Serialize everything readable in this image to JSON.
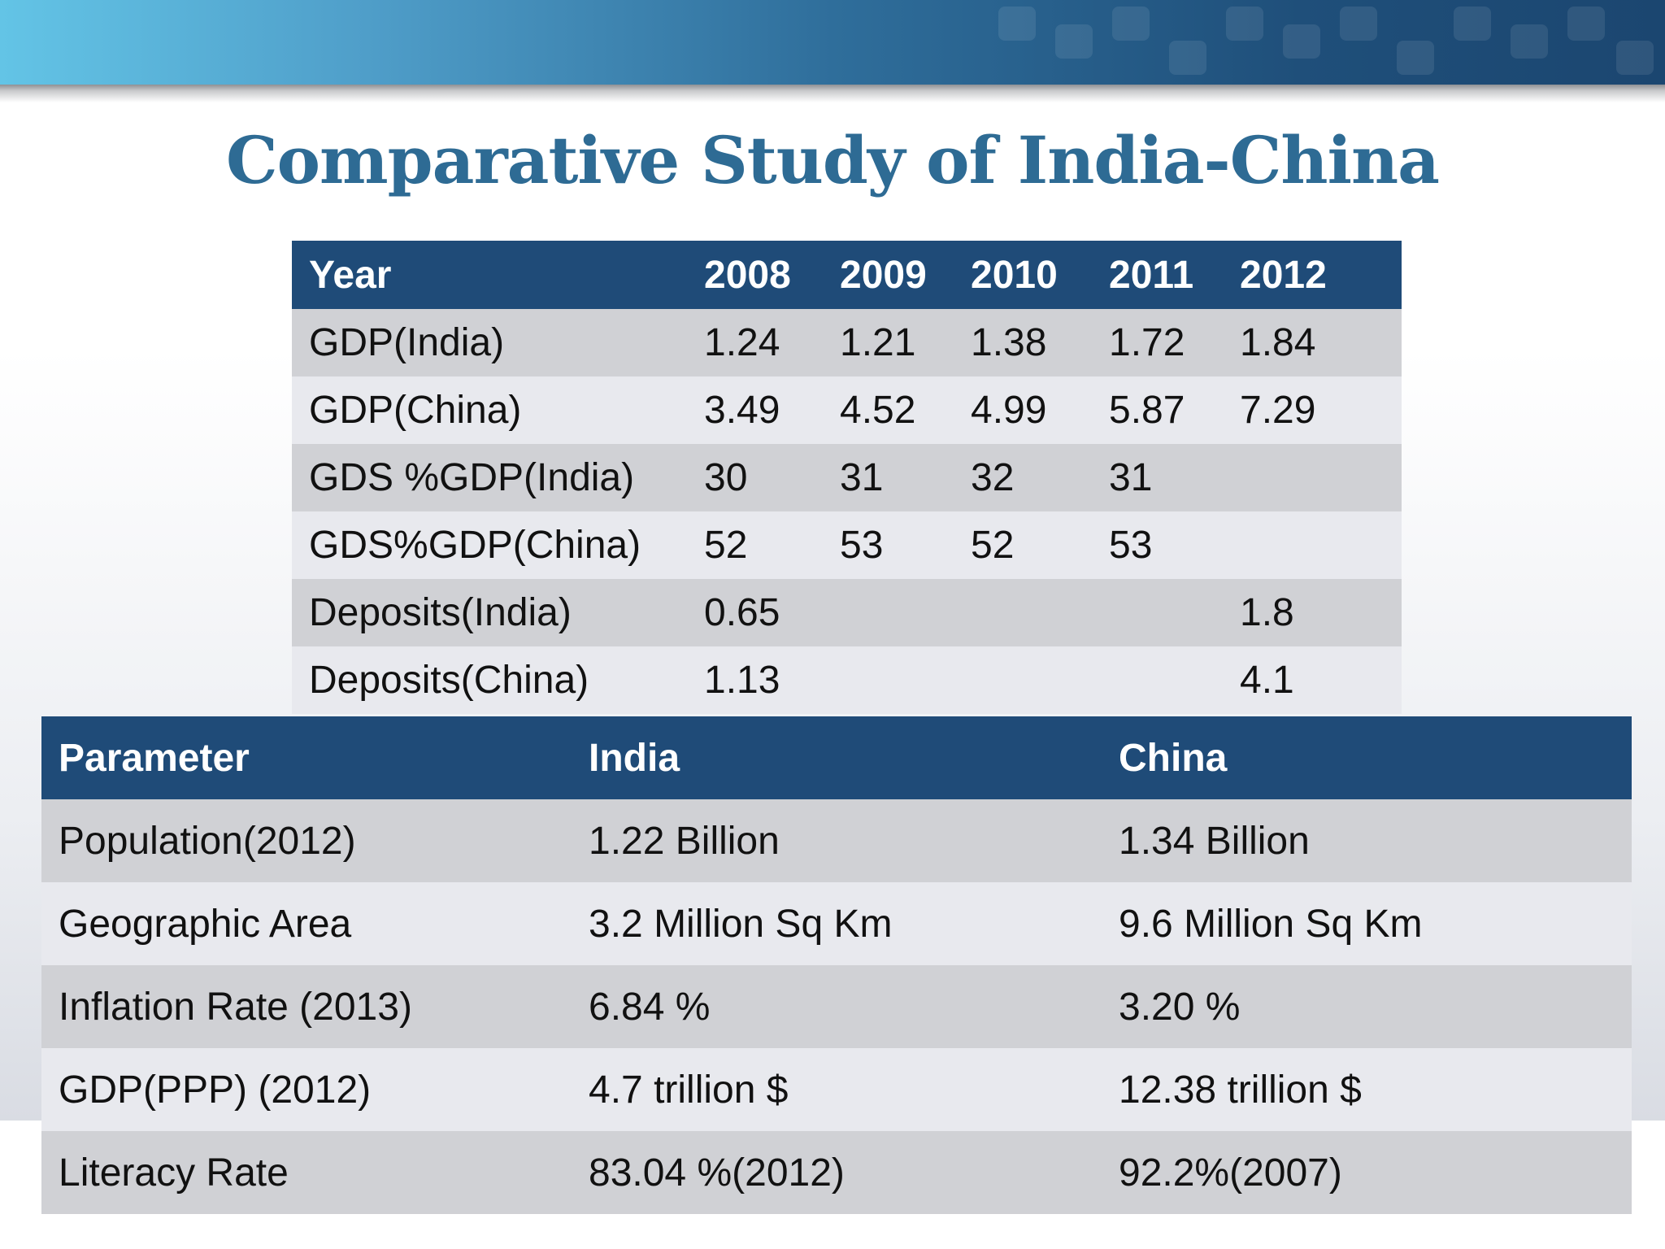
{
  "slide": {
    "title": "Comparative Study of India-China"
  },
  "year_table": {
    "header": [
      "Year",
      "2008",
      "2009",
      "2010",
      "2011",
      "2012"
    ],
    "rows": [
      [
        "GDP(India)",
        "1.24",
        "1.21",
        "1.38",
        "1.72",
        "1.84"
      ],
      [
        "GDP(China)",
        "3.49",
        "4.52",
        "4.99",
        "5.87",
        "7.29"
      ],
      [
        "GDS %GDP(India)",
        "30",
        "31",
        "32",
        "31",
        ""
      ],
      [
        "GDS%GDP(China)",
        "52",
        "53",
        "52",
        "53",
        ""
      ],
      [
        "Deposits(India)",
        "0.65",
        "",
        "",
        "",
        "1.8"
      ],
      [
        "Deposits(China)",
        "1.13",
        "",
        "",
        "",
        "4.1"
      ]
    ]
  },
  "comparison_table": {
    "header": [
      "Parameter",
      "India",
      "China"
    ],
    "rows": [
      [
        "Population(2012)",
        "1.22 Billion",
        "1.34 Billion"
      ],
      [
        "Geographic Area",
        "3.2 Million Sq Km",
        "9.6 Million Sq Km"
      ],
      [
        "Inflation Rate (2013)",
        "6.84 %",
        "3.20 %"
      ],
      [
        "GDP(PPP) (2012)",
        "4.7 trillion $",
        "12.38 trillion $"
      ],
      [
        "Literacy Rate",
        "83.04 %(2012)",
        "92.2%(2007)"
      ]
    ]
  },
  "colors": {
    "title": "#2e6b94",
    "table_header": "#1f4b78",
    "row_odd": "#d0d1d5",
    "row_even": "#e8e9ee",
    "banner_start": "#63c4e6",
    "banner_end": "#1b4670"
  }
}
